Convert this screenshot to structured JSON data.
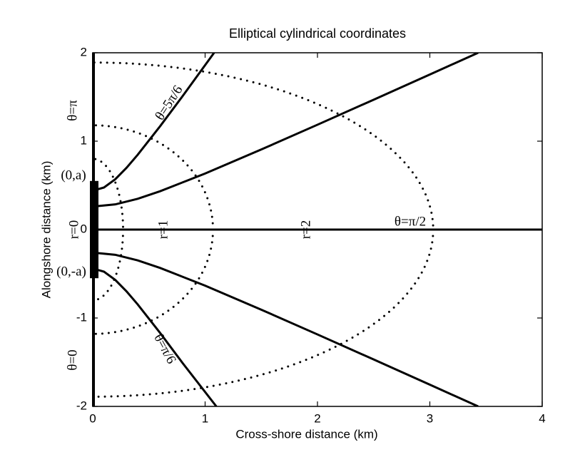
{
  "chart_data": {
    "type": "line",
    "title": "Elliptical cylindrical coordinates",
    "x_label": "Cross-shore distance (km)",
    "y_label": "Alongshore distance (km)",
    "xlim": [
      0,
      4
    ],
    "ylim": [
      -2,
      2
    ],
    "xticks": [
      0,
      1,
      2,
      3,
      4
    ],
    "yticks": [
      -2,
      -1,
      0,
      1,
      2
    ],
    "grid": false,
    "color": "#000000",
    "series": [
      {
        "x": [
          0,
          0.1,
          0.2,
          0.3,
          0.4,
          0.6,
          0.8,
          1.08
        ],
        "values": [
          0.44,
          0.476,
          0.569,
          0.698,
          0.846,
          1.17,
          1.51,
          2.0
        ]
      },
      {
        "x": [
          0,
          0.2,
          0.4,
          0.6,
          1.0,
          1.5,
          2.0,
          2.5,
          3.0,
          3.43
        ],
        "values": [
          0.26,
          0.285,
          0.348,
          0.434,
          0.634,
          0.906,
          1.186,
          1.469,
          1.754,
          2.0
        ]
      },
      {
        "x": [
          0,
          4
        ],
        "values": [
          0,
          0
        ]
      },
      {
        "x": [
          0,
          0.2,
          0.4,
          0.6,
          1.0,
          1.5,
          2.0,
          2.5,
          3.0,
          3.43
        ],
        "values": [
          -0.26,
          -0.285,
          -0.348,
          -0.434,
          -0.634,
          -0.906,
          -1.186,
          -1.469,
          -1.754,
          -2.0
        ]
      },
      {
        "x": [
          0,
          0.1,
          0.2,
          0.3,
          0.4,
          0.6,
          0.8,
          1.1
        ],
        "values": [
          -0.44,
          -0.476,
          -0.569,
          -0.698,
          -0.846,
          -1.17,
          -1.51,
          -2.0
        ]
      }
    ],
    "ellipses": [
      {
        "rx": 0.27,
        "ry": 0.8
      },
      {
        "rx": 1.07,
        "ry": 1.18
      },
      {
        "rx": 3.03,
        "ry": 1.89
      }
    ],
    "strip": [
      -0.55,
      0.55
    ],
    "annotations": [
      "θ=π",
      "(0,a)",
      "r=0",
      "(0,-a)",
      "θ=0",
      "θ=5π/6",
      "r=1",
      "r=2",
      "θ=π/2",
      "θ=π/6"
    ]
  }
}
